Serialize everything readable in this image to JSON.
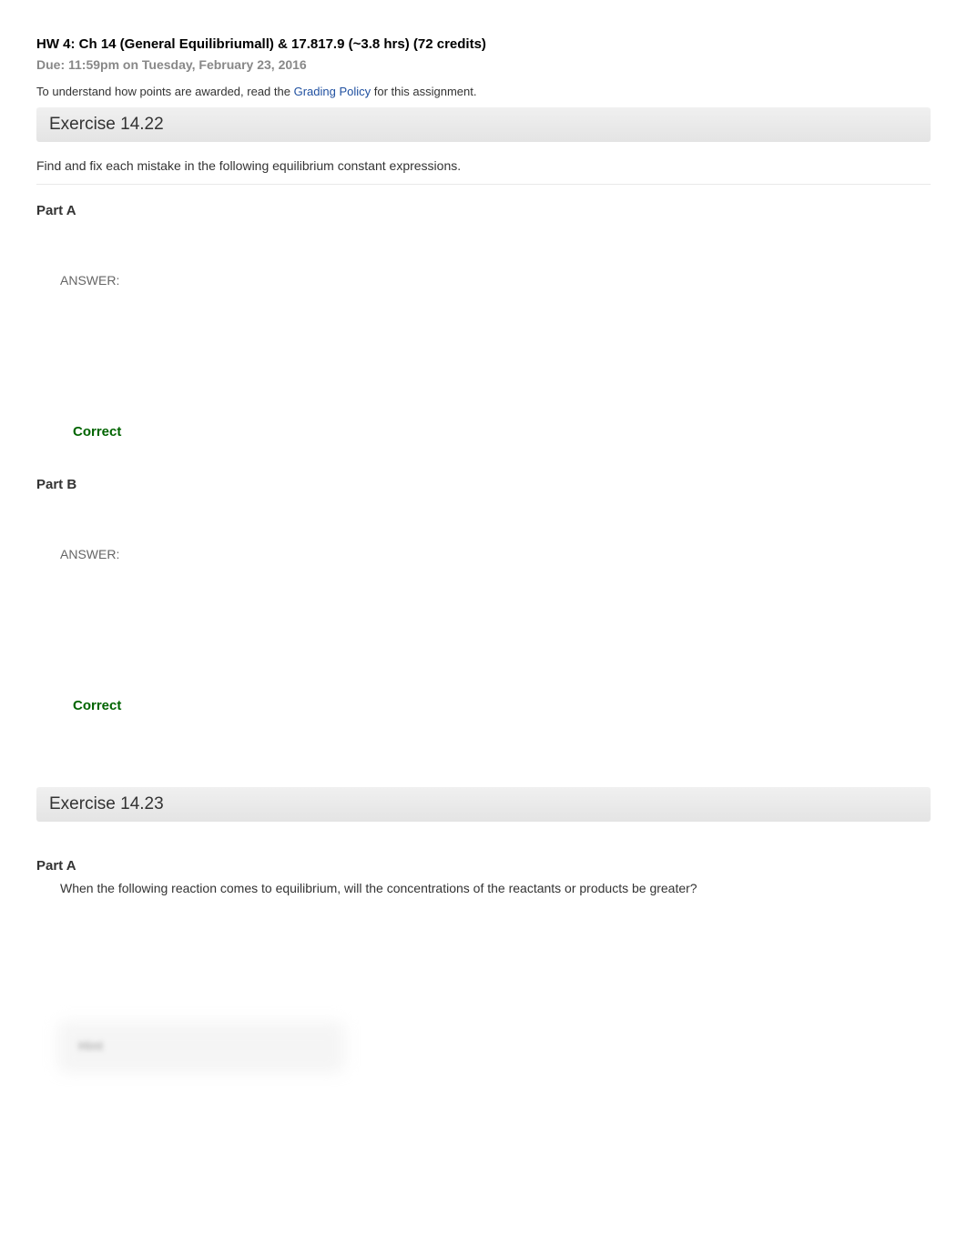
{
  "header": {
    "title": "HW 4: Ch 14 (General Equilibriumall) & 17.817.9 (~3.8 hrs) (72 credits)",
    "due": "Due: 11:59pm on Tuesday, February 23, 2016",
    "points_prefix": "To understand how points are awarded, read the ",
    "grading_link": "Grading Policy",
    "points_suffix": " for this assignment."
  },
  "exercise1": {
    "title": "Exercise 14.22",
    "intro": "Find and fix each mistake in the following equilibrium constant expressions.",
    "partA": {
      "label": "Part A",
      "answer_label": "ANSWER:",
      "status": "Correct"
    },
    "partB": {
      "label": "Part B",
      "answer_label": "ANSWER:",
      "status": "Correct"
    }
  },
  "exercise2": {
    "title": "Exercise 14.23",
    "partA": {
      "label": "Part A",
      "question": "When the following reaction comes to equilibrium, will the concentrations of the reactants or products be greater?",
      "hint_label": "Hint"
    }
  },
  "colors": {
    "correct": "#006400",
    "link": "#2050a0",
    "muted": "#888888",
    "text": "#333333"
  }
}
